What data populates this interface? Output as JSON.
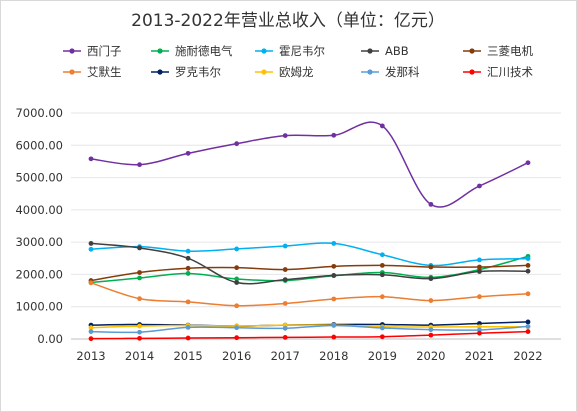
{
  "chart_data": {
    "type": "line",
    "title": "2013-2022年营业总收入（单位：亿元）",
    "xlabel": "",
    "ylabel": "",
    "ylim": [
      0,
      7000
    ],
    "yticks": [
      "0.00",
      "1000.00",
      "2000.00",
      "3000.00",
      "4000.00",
      "5000.00",
      "6000.00",
      "7000.00"
    ],
    "categories": [
      "2013",
      "2014",
      "2015",
      "2016",
      "2017",
      "2018",
      "2019",
      "2020",
      "2021",
      "2022"
    ],
    "grid": true,
    "legend_position": "top",
    "series": [
      {
        "name": "西门子",
        "color": "#7030a0",
        "values": [
          5580,
          5400,
          5750,
          6050,
          6300,
          6310,
          6600,
          4170,
          4740,
          5460
        ]
      },
      {
        "name": "施耐德电气",
        "color": "#00b050",
        "values": [
          1750,
          1890,
          2030,
          1860,
          1810,
          1960,
          2060,
          1910,
          2150,
          2560
        ]
      },
      {
        "name": "霍尼韦尔",
        "color": "#00b0f0",
        "values": [
          2780,
          2860,
          2720,
          2790,
          2880,
          2960,
          2610,
          2280,
          2450,
          2490
        ]
      },
      {
        "name": "ABB",
        "color": "#404040",
        "values": [
          2960,
          2820,
          2500,
          1750,
          1840,
          1970,
          1990,
          1870,
          2090,
          2100
        ]
      },
      {
        "name": "三菱电机",
        "color": "#843c0c",
        "values": [
          1810,
          2060,
          2190,
          2210,
          2150,
          2250,
          2280,
          2230,
          2230,
          2280
        ]
      },
      {
        "name": "艾默生",
        "color": "#ed7d31",
        "values": [
          1740,
          1250,
          1150,
          1030,
          1100,
          1240,
          1310,
          1190,
          1310,
          1400
        ]
      },
      {
        "name": "罗克韦尔",
        "color": "#002060",
        "values": [
          430,
          450,
          430,
          400,
          430,
          450,
          450,
          430,
          480,
          530
        ]
      },
      {
        "name": "欧姆龙",
        "color": "#ffc000",
        "values": [
          350,
          400,
          420,
          400,
          430,
          430,
          380,
          370,
          380,
          380
        ]
      },
      {
        "name": "发那科",
        "color": "#5b9bd5",
        "values": [
          230,
          210,
          360,
          350,
          330,
          420,
          340,
          290,
          280,
          390
        ]
      },
      {
        "name": "汇川技术",
        "color": "#ff0000",
        "values": [
          10,
          20,
          30,
          40,
          50,
          60,
          70,
          120,
          180,
          230
        ]
      }
    ]
  }
}
